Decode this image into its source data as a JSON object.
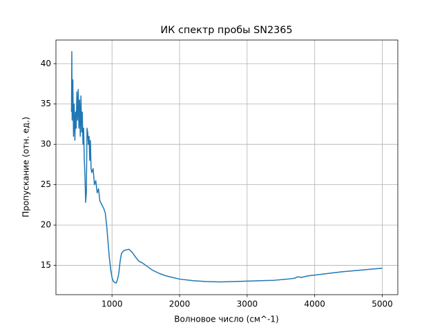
{
  "chart_data": {
    "type": "line",
    "title": "ИК спектр пробы SN2365",
    "x_label": "Волновое число (см^-1)",
    "y_label": "Пропускание (отн. ед.)",
    "xlim": [
      170,
      5230
    ],
    "ylim": [
      11.37,
      42.93
    ],
    "xticks": [
      1000,
      2000,
      3000,
      4000,
      5000
    ],
    "yticks": [
      15,
      20,
      25,
      30,
      35,
      40
    ],
    "grid": true,
    "x": [
      400,
      405,
      410,
      420,
      430,
      440,
      450,
      460,
      470,
      480,
      490,
      500,
      510,
      520,
      530,
      540,
      550,
      560,
      570,
      580,
      590,
      600,
      610,
      620,
      630,
      640,
      650,
      660,
      670,
      680,
      690,
      700,
      720,
      740,
      760,
      780,
      800,
      820,
      850,
      880,
      900,
      920,
      940,
      960,
      980,
      1000,
      1020,
      1060,
      1080,
      1100,
      1120,
      1140,
      1170,
      1200,
      1250,
      1300,
      1350,
      1400,
      1450,
      1500,
      1600,
      1700,
      1800,
      1900,
      2000,
      2200,
      2400,
      2600,
      2800,
      3000,
      3200,
      3400,
      3600,
      3700,
      3750,
      3800,
      3900,
      4000,
      4200,
      4400,
      4600,
      4800,
      5000
    ],
    "series": [
      {
        "color": "#1f77b4",
        "values": [
          34,
          41.5,
          33,
          38,
          31,
          35,
          30.5,
          34,
          32,
          36.5,
          33,
          36.8,
          32,
          35.5,
          31,
          36,
          31.5,
          34,
          30,
          32,
          28,
          26,
          22.8,
          24,
          32,
          31.5,
          30,
          31,
          28,
          30.5,
          27,
          26.5,
          27,
          25,
          25.5,
          24,
          24.5,
          23,
          22.5,
          22,
          21.5,
          20,
          18,
          16,
          14.5,
          13.5,
          13,
          12.8,
          13.2,
          14,
          15.5,
          16.5,
          16.8,
          16.9,
          17,
          16.6,
          16,
          15.5,
          15.3,
          15,
          14.4,
          14,
          13.7,
          13.5,
          13.3,
          13.1,
          13,
          12.95,
          13,
          13.05,
          13.1,
          13.15,
          13.3,
          13.4,
          13.6,
          13.5,
          13.7,
          13.8,
          14,
          14.2,
          14.35,
          14.5,
          14.65
        ]
      }
    ]
  }
}
